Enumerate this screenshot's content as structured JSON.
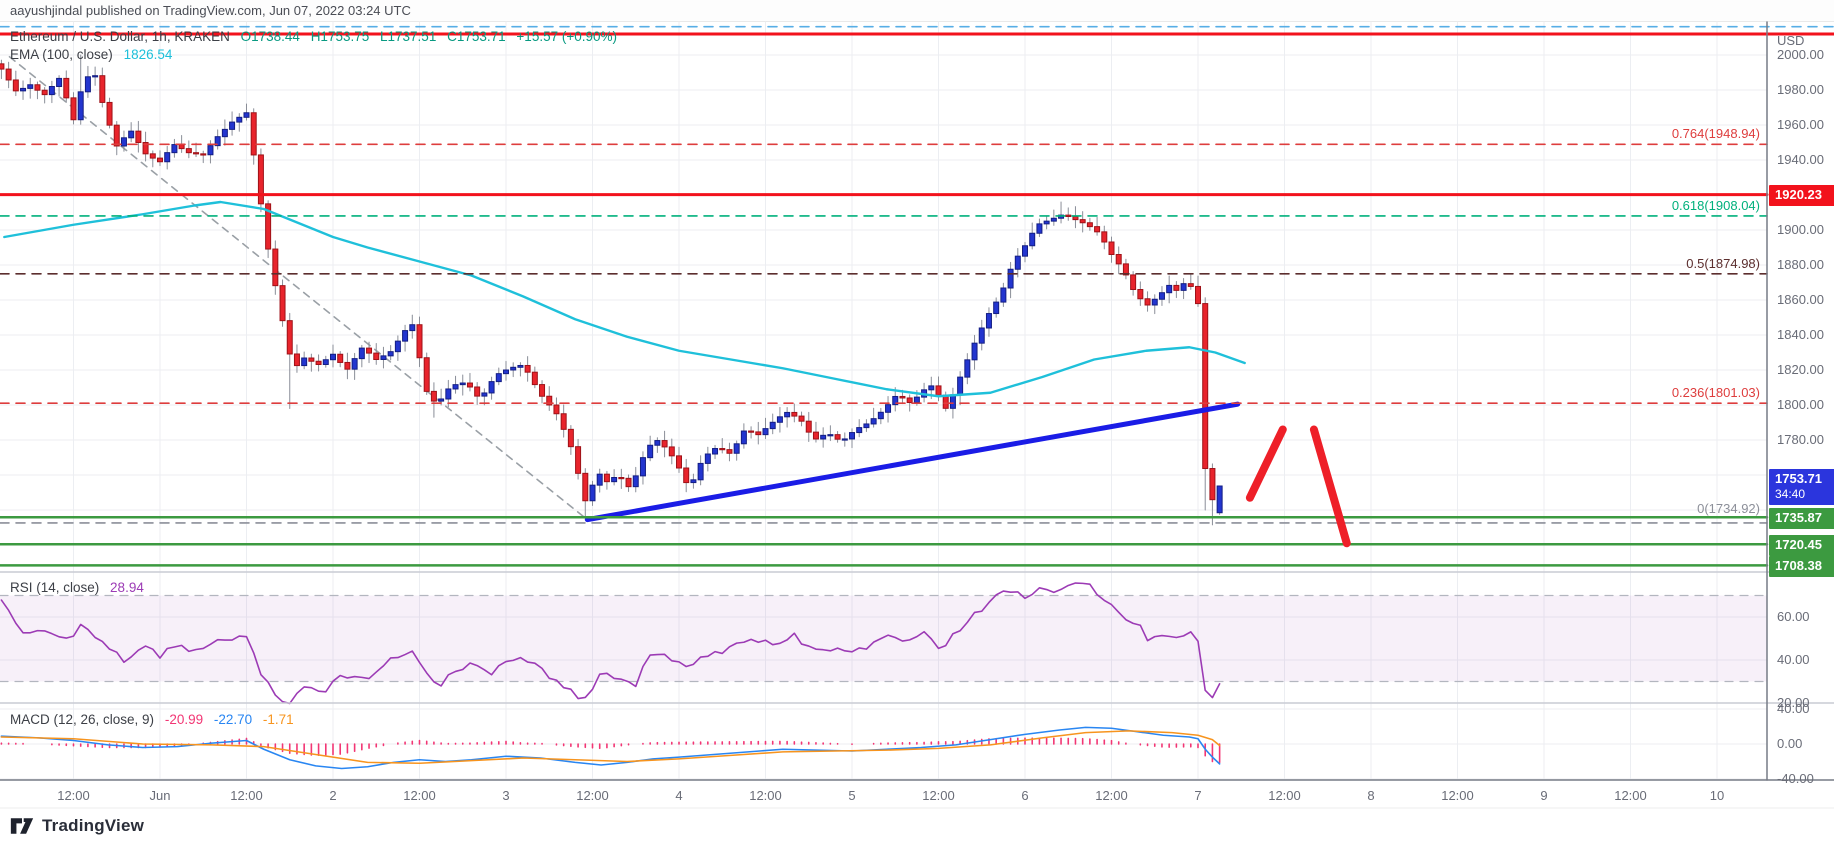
{
  "attribution": {
    "text": "aayushjindal published on TradingView.com, Jun 07, 2022 03:24 UTC"
  },
  "footer": {
    "brand": "TradingView"
  },
  "legend": {
    "title": "Ethereum / U.S. Dollar, 1h, KRAKEN",
    "ohlc": [
      "O1738.44",
      "H1753.75",
      "L1737.51",
      "C1753.71",
      "+15.57 (+0.90%)"
    ],
    "ema_label": "EMA (100, close)",
    "ema_value": "1826.54"
  },
  "rsi_legend": {
    "label": "RSI (14, close)",
    "value": "28.94"
  },
  "macd_legend": {
    "label": "MACD (12, 26, close, 9)",
    "v1": "-20.99",
    "v2": "-22.70",
    "v3": "-1.71"
  },
  "axis": {
    "unit": "USD",
    "price_ticks": [
      2000,
      1980,
      1960,
      1940,
      1900,
      1880,
      1860,
      1840,
      1820,
      1800,
      1780,
      1760
    ],
    "rsi_ticks": [
      60,
      40,
      20
    ],
    "macd_ticks": [
      40,
      0,
      -40
    ],
    "time_labels": [
      {
        "t": 0.5,
        "text": "12:00"
      },
      {
        "t": 1,
        "text": "Jun"
      },
      {
        "t": 1.5,
        "text": "12:00"
      },
      {
        "t": 2,
        "text": "2"
      },
      {
        "t": 2.5,
        "text": "12:00"
      },
      {
        "t": 3,
        "text": "3"
      },
      {
        "t": 3.5,
        "text": "12:00"
      },
      {
        "t": 4,
        "text": "4"
      },
      {
        "t": 4.5,
        "text": "12:00"
      },
      {
        "t": 5,
        "text": "5"
      },
      {
        "t": 5.5,
        "text": "12:00"
      },
      {
        "t": 6,
        "text": "6"
      },
      {
        "t": 6.5,
        "text": "12:00"
      },
      {
        "t": 7,
        "text": "7"
      },
      {
        "t": 7.5,
        "text": "12:00"
      },
      {
        "t": 8,
        "text": "8"
      },
      {
        "t": 8.5,
        "text": "12:00"
      },
      {
        "t": 9,
        "text": "9"
      },
      {
        "t": 9.5,
        "text": "12:00"
      },
      {
        "t": 10,
        "text": "10"
      }
    ]
  },
  "badges": [
    {
      "text": "1920.23",
      "price": 1920.23,
      "bg": "#f2121c",
      "panel": "main"
    },
    {
      "text": "1753.71",
      "sub": "34:40",
      "price": 1753.71,
      "bg": "#2b35dd",
      "panel": "main"
    },
    {
      "text": "1735.87",
      "price": 1735.87,
      "bg": "#3c9a40",
      "panel": "main"
    },
    {
      "text": "1720.45",
      "price": 1720.45,
      "bg": "#3c9a40",
      "panel": "main"
    },
    {
      "text": "1708.38",
      "price": 1708.38,
      "bg": "#3c9a40",
      "panel": "main"
    }
  ],
  "chart_data": {
    "type": "candlestick",
    "title": "Ethereum / U.S. Dollar, 1h, KRAKEN",
    "x_range_days": [
      0.06,
      10.28
    ],
    "y_range_usd": [
      1704,
      2017
    ],
    "last_bar": {
      "open": 1738.44,
      "high": 1753.75,
      "low": 1737.51,
      "close": 1753.71,
      "change": "+15.57 (+0.90%)"
    },
    "candles_meta": {
      "start_t": 0.0833,
      "step_days": 0.041667,
      "count": 170
    },
    "close_anchors": [
      [
        0.083,
        1992
      ],
      [
        0.17,
        1979
      ],
      [
        0.25,
        1983
      ],
      [
        0.33,
        1977
      ],
      [
        0.42,
        1987
      ],
      [
        0.5,
        1963
      ],
      [
        0.56,
        1986
      ],
      [
        0.62,
        1990
      ],
      [
        0.68,
        1968
      ],
      [
        0.75,
        1948
      ],
      [
        0.83,
        1957
      ],
      [
        0.92,
        1943
      ],
      [
        1.0,
        1939
      ],
      [
        1.08,
        1949
      ],
      [
        1.17,
        1944
      ],
      [
        1.25,
        1943
      ],
      [
        1.33,
        1953
      ],
      [
        1.42,
        1962
      ],
      [
        1.5,
        1967
      ],
      [
        1.54,
        1944
      ],
      [
        1.58,
        1917
      ],
      [
        1.63,
        1886
      ],
      [
        1.7,
        1852
      ],
      [
        1.77,
        1820
      ],
      [
        1.83,
        1827
      ],
      [
        1.92,
        1823
      ],
      [
        2.0,
        1829
      ],
      [
        2.08,
        1820
      ],
      [
        2.17,
        1833
      ],
      [
        2.25,
        1826
      ],
      [
        2.33,
        1830
      ],
      [
        2.42,
        1843
      ],
      [
        2.46,
        1846
      ],
      [
        2.5,
        1827
      ],
      [
        2.54,
        1808
      ],
      [
        2.6,
        1800
      ],
      [
        2.68,
        1811
      ],
      [
        2.77,
        1813
      ],
      [
        2.85,
        1803
      ],
      [
        2.94,
        1817
      ],
      [
        3.02,
        1821
      ],
      [
        3.1,
        1823
      ],
      [
        3.2,
        1806
      ],
      [
        3.3,
        1794
      ],
      [
        3.38,
        1775
      ],
      [
        3.44,
        1752
      ],
      [
        3.47,
        1741
      ],
      [
        3.52,
        1763
      ],
      [
        3.58,
        1756
      ],
      [
        3.65,
        1760
      ],
      [
        3.72,
        1752
      ],
      [
        3.8,
        1772
      ],
      [
        3.86,
        1781
      ],
      [
        3.94,
        1774
      ],
      [
        4.0,
        1764
      ],
      [
        4.06,
        1752
      ],
      [
        4.14,
        1770
      ],
      [
        4.22,
        1776
      ],
      [
        4.3,
        1772
      ],
      [
        4.38,
        1786
      ],
      [
        4.46,
        1783
      ],
      [
        4.54,
        1790
      ],
      [
        4.62,
        1796
      ],
      [
        4.7,
        1792
      ],
      [
        4.78,
        1780
      ],
      [
        4.86,
        1784
      ],
      [
        4.94,
        1779
      ],
      [
        5.02,
        1786
      ],
      [
        5.1,
        1790
      ],
      [
        5.18,
        1797
      ],
      [
        5.26,
        1806
      ],
      [
        5.34,
        1801
      ],
      [
        5.42,
        1809
      ],
      [
        5.48,
        1812
      ],
      [
        5.53,
        1796
      ],
      [
        5.58,
        1805
      ],
      [
        5.65,
        1822
      ],
      [
        5.72,
        1838
      ],
      [
        5.79,
        1852
      ],
      [
        5.86,
        1863
      ],
      [
        5.93,
        1881
      ],
      [
        6.0,
        1891
      ],
      [
        6.07,
        1903
      ],
      [
        6.15,
        1906
      ],
      [
        6.22,
        1909
      ],
      [
        6.29,
        1906
      ],
      [
        6.36,
        1903
      ],
      [
        6.43,
        1898
      ],
      [
        6.5,
        1886
      ],
      [
        6.57,
        1877
      ],
      [
        6.64,
        1863
      ],
      [
        6.71,
        1857
      ],
      [
        6.78,
        1863
      ],
      [
        6.84,
        1869
      ],
      [
        6.89,
        1864
      ],
      [
        6.93,
        1872
      ],
      [
        6.97,
        1866
      ],
      [
        7.0,
        1858
      ],
      [
        7.042,
        1763
      ],
      [
        7.083,
        1746
      ],
      [
        7.1,
        1741
      ],
      [
        7.125,
        1753.71
      ]
    ],
    "wick_overrides": [
      {
        "t": 0.56,
        "high": 2000
      },
      {
        "t": 1.77,
        "low": 1798
      },
      {
        "t": 2.6,
        "low": 1793
      },
      {
        "t": 3.47,
        "low": 1734.92
      },
      {
        "t": 6.22,
        "high": 1916
      },
      {
        "t": 7.042,
        "low": 1740
      },
      {
        "t": 7.083,
        "low": 1737.51
      },
      {
        "t": 7.1,
        "low": 1731.5
      }
    ],
    "ema": {
      "label": "EMA (100, close)",
      "value": 1826.54,
      "points": [
        [
          0.1,
          1896
        ],
        [
          0.5,
          1903
        ],
        [
          0.9,
          1909
        ],
        [
          1.2,
          1914
        ],
        [
          1.35,
          1916
        ],
        [
          1.6,
          1912
        ],
        [
          1.8,
          1904
        ],
        [
          2.0,
          1896
        ],
        [
          2.2,
          1890
        ],
        [
          2.5,
          1882
        ],
        [
          2.8,
          1874
        ],
        [
          3.1,
          1862
        ],
        [
          3.4,
          1849
        ],
        [
          3.7,
          1839
        ],
        [
          4.0,
          1831
        ],
        [
          4.3,
          1826
        ],
        [
          4.6,
          1821
        ],
        [
          4.9,
          1815
        ],
        [
          5.2,
          1809
        ],
        [
          5.5,
          1805
        ],
        [
          5.8,
          1807
        ],
        [
          6.1,
          1816
        ],
        [
          6.4,
          1826
        ],
        [
          6.7,
          1831
        ],
        [
          6.95,
          1833
        ],
        [
          7.1,
          1830
        ],
        [
          7.27,
          1824
        ]
      ]
    },
    "fib_levels": [
      {
        "label": "0.764(1948.94)",
        "price": 1948.94,
        "color": "#de3d3d"
      },
      {
        "label": "0.618(1908.04)",
        "price": 1908.04,
        "color": "#00b07c"
      },
      {
        "label": "0.5(1874.98)",
        "price": 1874.98,
        "color": "#5c2e2e"
      },
      {
        "label": "0.236(1801.03)",
        "price": 1801.03,
        "color": "#de3d3d"
      },
      {
        "label": "0(1734.92)",
        "price": 1734.92,
        "color": "#8c8f99"
      }
    ],
    "h_lines": [
      {
        "price": 2016.2,
        "color": "#57aee6",
        "dash": true,
        "w": 1.6
      },
      {
        "price": 2012.0,
        "color": "#f2121c",
        "dash": false,
        "w": 3
      },
      {
        "price": 1920.23,
        "color": "#f2121c",
        "dash": false,
        "w": 3
      },
      {
        "price": 1735.87,
        "color": "#3c9a40",
        "dash": false,
        "w": 2.5
      },
      {
        "price": 1720.45,
        "color": "#3c9a40",
        "dash": false,
        "w": 2.5
      },
      {
        "price": 1708.38,
        "color": "#3c9a40",
        "dash": false,
        "w": 2.5
      }
    ],
    "trend_lines": [
      {
        "name": "rising-support",
        "from": [
          3.47,
          1734.5
        ],
        "to": [
          7.23,
          1800.5
        ],
        "color": "#1a1ce6",
        "w": 5,
        "dash": false
      },
      {
        "name": "falling-dashed",
        "from": [
          0.13,
          1999
        ],
        "to": [
          3.47,
          1734.5
        ],
        "color": "#9aa0a6",
        "w": 1.6,
        "dash": true
      }
    ],
    "drawn_arrows": [
      {
        "name": "bounce-up",
        "from": [
          7.3,
          1747
        ],
        "to": [
          7.49,
          1786
        ],
        "color": "#ee1f28",
        "w": 8
      },
      {
        "name": "breakdown-down",
        "from": [
          7.67,
          1786
        ],
        "to": [
          7.86,
          1721
        ],
        "color": "#ee1f28",
        "w": 8
      }
    ],
    "rsi": {
      "label": "RSI (14, close)",
      "value": 28.94,
      "band": [
        30,
        70
      ],
      "points": [
        [
          0.083,
          67
        ],
        [
          0.2,
          52
        ],
        [
          0.3,
          55
        ],
        [
          0.45,
          48
        ],
        [
          0.55,
          57
        ],
        [
          0.7,
          45
        ],
        [
          0.8,
          40
        ],
        [
          0.9,
          46
        ],
        [
          1.0,
          42
        ],
        [
          1.1,
          48
        ],
        [
          1.2,
          44
        ],
        [
          1.35,
          49
        ],
        [
          1.5,
          52
        ],
        [
          1.56,
          38
        ],
        [
          1.65,
          25
        ],
        [
          1.75,
          20
        ],
        [
          1.85,
          28
        ],
        [
          1.95,
          25
        ],
        [
          2.05,
          33
        ],
        [
          2.2,
          30
        ],
        [
          2.35,
          41
        ],
        [
          2.46,
          45
        ],
        [
          2.55,
          32
        ],
        [
          2.62,
          29
        ],
        [
          2.72,
          36
        ],
        [
          2.82,
          38
        ],
        [
          2.9,
          33
        ],
        [
          3.0,
          40
        ],
        [
          3.1,
          42
        ],
        [
          3.2,
          36
        ],
        [
          3.32,
          28
        ],
        [
          3.47,
          21
        ],
        [
          3.55,
          34
        ],
        [
          3.65,
          31
        ],
        [
          3.75,
          29
        ],
        [
          3.85,
          45
        ],
        [
          3.95,
          41
        ],
        [
          4.05,
          35
        ],
        [
          4.15,
          42
        ],
        [
          4.25,
          44
        ],
        [
          4.38,
          48
        ],
        [
          4.48,
          50
        ],
        [
          4.58,
          47
        ],
        [
          4.65,
          52
        ],
        [
          4.78,
          44
        ],
        [
          4.9,
          46
        ],
        [
          5.0,
          43
        ],
        [
          5.1,
          47
        ],
        [
          5.2,
          52
        ],
        [
          5.3,
          48
        ],
        [
          5.42,
          54
        ],
        [
          5.5,
          45
        ],
        [
          5.6,
          52
        ],
        [
          5.7,
          61
        ],
        [
          5.8,
          67
        ],
        [
          5.9,
          73
        ],
        [
          6.0,
          69
        ],
        [
          6.1,
          74
        ],
        [
          6.2,
          72
        ],
        [
          6.3,
          77
        ],
        [
          6.38,
          74
        ],
        [
          6.45,
          69
        ],
        [
          6.55,
          60
        ],
        [
          6.65,
          57
        ],
        [
          6.72,
          49
        ],
        [
          6.82,
          53
        ],
        [
          6.9,
          49
        ],
        [
          6.97,
          55
        ],
        [
          7.01,
          48
        ],
        [
          7.042,
          27
        ],
        [
          7.083,
          23
        ],
        [
          7.1,
          26
        ],
        [
          7.125,
          28.94
        ]
      ]
    },
    "macd": {
      "label": "MACD (12, 26, close, 9)",
      "histogram_value": -20.99,
      "macd_value": -22.7,
      "signal_value": -1.71,
      "macd_points": [
        [
          0.083,
          9
        ],
        [
          0.3,
          7
        ],
        [
          0.5,
          4
        ],
        [
          0.7,
          -1
        ],
        [
          0.9,
          -4
        ],
        [
          1.1,
          -3
        ],
        [
          1.3,
          1
        ],
        [
          1.5,
          4
        ],
        [
          1.6,
          -6
        ],
        [
          1.75,
          -18
        ],
        [
          1.9,
          -25
        ],
        [
          2.05,
          -28
        ],
        [
          2.2,
          -26
        ],
        [
          2.35,
          -21
        ],
        [
          2.5,
          -18
        ],
        [
          2.65,
          -20
        ],
        [
          2.8,
          -18
        ],
        [
          3.0,
          -14
        ],
        [
          3.2,
          -16
        ],
        [
          3.4,
          -21
        ],
        [
          3.55,
          -24
        ],
        [
          3.7,
          -21
        ],
        [
          3.85,
          -17
        ],
        [
          4.0,
          -15
        ],
        [
          4.2,
          -12
        ],
        [
          4.4,
          -9
        ],
        [
          4.6,
          -6
        ],
        [
          4.8,
          -7
        ],
        [
          5.0,
          -8
        ],
        [
          5.2,
          -6
        ],
        [
          5.4,
          -4
        ],
        [
          5.6,
          -1
        ],
        [
          5.8,
          5
        ],
        [
          6.0,
          11
        ],
        [
          6.2,
          16
        ],
        [
          6.35,
          19
        ],
        [
          6.5,
          18
        ],
        [
          6.65,
          14
        ],
        [
          6.8,
          10
        ],
        [
          6.95,
          8
        ],
        [
          7.0,
          6
        ],
        [
          7.042,
          -6
        ],
        [
          7.083,
          -15
        ],
        [
          7.125,
          -22.7
        ]
      ],
      "signal_points": [
        [
          0.083,
          8
        ],
        [
          0.5,
          6
        ],
        [
          0.9,
          0
        ],
        [
          1.3,
          -1
        ],
        [
          1.6,
          -3
        ],
        [
          1.9,
          -12
        ],
        [
          2.2,
          -21
        ],
        [
          2.5,
          -22
        ],
        [
          2.8,
          -19
        ],
        [
          3.1,
          -16
        ],
        [
          3.4,
          -18
        ],
        [
          3.7,
          -20
        ],
        [
          4.0,
          -17
        ],
        [
          4.3,
          -13
        ],
        [
          4.6,
          -9
        ],
        [
          4.9,
          -8
        ],
        [
          5.2,
          -7
        ],
        [
          5.5,
          -5
        ],
        [
          5.8,
          -1
        ],
        [
          6.1,
          7
        ],
        [
          6.35,
          13
        ],
        [
          6.6,
          15
        ],
        [
          6.85,
          13
        ],
        [
          7.0,
          10
        ],
        [
          7.083,
          5
        ],
        [
          7.125,
          -1.71
        ]
      ]
    },
    "colors": {
      "up": "#2335cf",
      "up_border": "#141e83",
      "down": "#e8242c",
      "down_border": "#9f1218",
      "wick": "#8a8e98",
      "ema": "#1fc0da",
      "rsi": "#9c3bb5",
      "rsi_band": "rgba(156,59,181,0.08)",
      "macd_line": "#2986f2",
      "signal_line": "#f7941e",
      "histogram": "#f23674",
      "grid": "#eceef2",
      "separator": "#c9ccd4",
      "axis_border": "#777b85",
      "axis_text": "#696c77",
      "ohlc_text": "#089981",
      "band_edge": "#b3b6bf"
    }
  }
}
